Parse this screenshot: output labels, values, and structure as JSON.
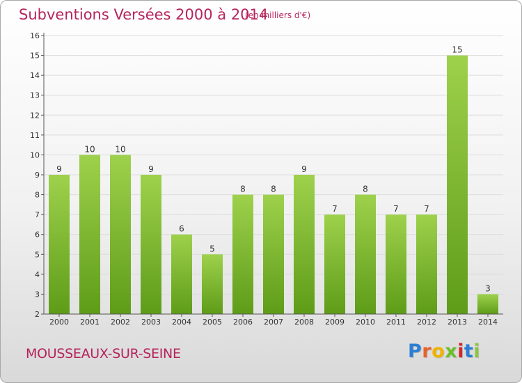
{
  "title": "Subventions Versées 2000 à 2014",
  "unit_note": "(en milliers d'€)",
  "commune": "MOUSSEAUX-SUR-SEINE",
  "logo": {
    "text": "Proxiti",
    "letter_colors": [
      "#2a7fd4",
      "#e8632a",
      "#f0b400",
      "#6cbf2a",
      "#d0282a",
      "#2a7fd4",
      "#8cc63f"
    ]
  },
  "colors": {
    "title": "#b5245c",
    "bar_top": "#9ed14c",
    "bar_bottom": "#5e9c18",
    "grid": "#dcdcdc",
    "axis": "#555555"
  },
  "chart_data": {
    "type": "bar",
    "title": "Subventions Versées 2000 à 2014",
    "subtitle": "(en milliers d'€)",
    "categories": [
      "2000",
      "2001",
      "2002",
      "2003",
      "2004",
      "2005",
      "2006",
      "2007",
      "2008",
      "2009",
      "2010",
      "2011",
      "2012",
      "2013",
      "2014"
    ],
    "values": [
      9,
      10,
      10,
      9,
      6,
      5,
      8,
      8,
      9,
      7,
      8,
      7,
      7,
      15,
      3
    ],
    "ylim": [
      2,
      16
    ],
    "yticks": [
      2,
      3,
      4,
      5,
      6,
      7,
      8,
      9,
      10,
      11,
      12,
      13,
      14,
      15,
      16
    ],
    "grid": true,
    "data_labels": true
  }
}
